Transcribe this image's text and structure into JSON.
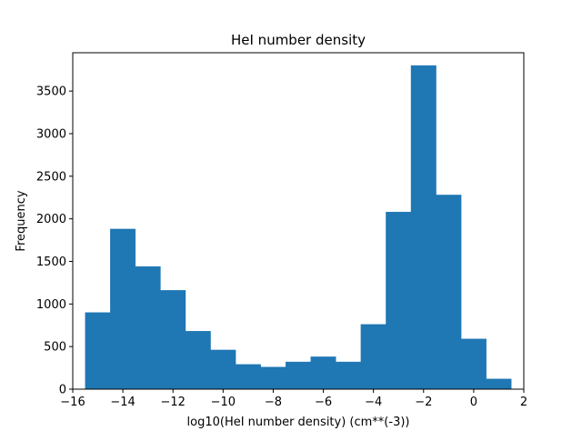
{
  "chart_data": {
    "type": "bar",
    "subtype": "histogram",
    "title": "HeI number density",
    "xlabel": "log10(HeI number density) (cm**(-3))",
    "ylabel": "Frequency",
    "xlim": [
      -16,
      2
    ],
    "ylim": [
      0,
      3950
    ],
    "bar_color": "#1f77b4",
    "bin_edges": [
      -15.5,
      -14.5,
      -13.5,
      -12.5,
      -11.5,
      -10.5,
      -9.5,
      -8.5,
      -7.5,
      -6.5,
      -5.5,
      -4.5,
      -3.5,
      -2.5,
      -1.5,
      -0.5,
      0.5,
      1.5
    ],
    "values": [
      900,
      1880,
      1440,
      1160,
      680,
      460,
      290,
      260,
      320,
      380,
      320,
      760,
      2080,
      3800,
      2280,
      590,
      120
    ],
    "xticks": [
      -16,
      -14,
      -12,
      -10,
      -8,
      -6,
      -4,
      -2,
      0,
      2
    ],
    "xtick_labels": [
      "−16",
      "−14",
      "−12",
      "−10",
      "−8",
      "−6",
      "−4",
      "−2",
      "0",
      "2"
    ],
    "yticks": [
      0,
      500,
      1000,
      1500,
      2000,
      2500,
      3000,
      3500
    ],
    "ytick_labels": [
      "0",
      "500",
      "1000",
      "1500",
      "2000",
      "2500",
      "3000",
      "3500"
    ],
    "grid": false,
    "legend": false
  }
}
